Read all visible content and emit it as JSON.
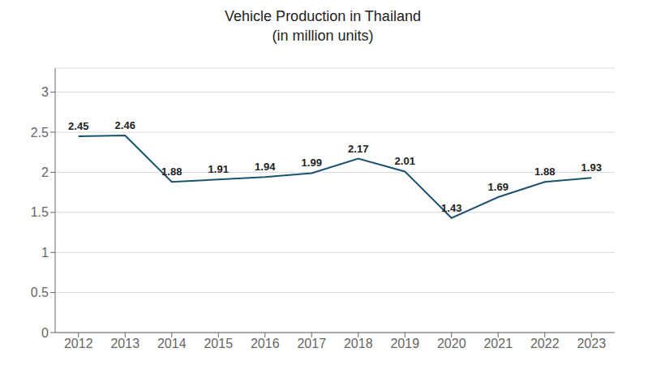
{
  "chart_data": {
    "type": "line",
    "title": "Vehicle Production in Thailand\n(in million units)",
    "x": [
      2012,
      2013,
      2014,
      2015,
      2016,
      2017,
      2018,
      2019,
      2020,
      2021,
      2022,
      2023
    ],
    "values": [
      2.45,
      2.46,
      1.88,
      1.91,
      1.94,
      1.99,
      2.17,
      2.01,
      1.43,
      1.69,
      1.88,
      1.93
    ],
    "color": "#1b5270",
    "marker": "none",
    "xlim": [
      2011.5,
      2023.5
    ],
    "xticks": [
      2012,
      2013,
      2014,
      2015,
      2016,
      2017,
      2018,
      2019,
      2020,
      2021,
      2022,
      2023
    ],
    "ylim": [
      0,
      3.3
    ],
    "yticks": [
      0,
      0.5,
      1,
      1.5,
      2,
      2.5,
      3
    ],
    "grid": true,
    "data_labels": true
  }
}
